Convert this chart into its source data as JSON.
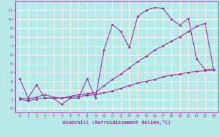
{
  "background_color": "#b8e8e8",
  "grid_color": "#ffffff",
  "line_color": "#993399",
  "xlabel": "Windchill (Refroidissement éolien,°C)",
  "xlim": [
    -0.5,
    23.5
  ],
  "ylim": [
    -0.5,
    12
  ],
  "xticks": [
    0,
    1,
    2,
    3,
    4,
    5,
    6,
    7,
    8,
    9,
    10,
    11,
    12,
    13,
    14,
    15,
    16,
    17,
    18,
    19,
    20,
    21,
    22,
    23
  ],
  "yticks": [
    0,
    1,
    2,
    3,
    4,
    5,
    6,
    7,
    8,
    9,
    10,
    11
  ],
  "curve1_x": [
    0,
    1,
    2,
    3,
    4,
    5,
    6,
    7,
    8,
    9,
    10,
    11,
    12,
    13,
    14,
    15,
    16,
    17,
    18,
    19,
    20,
    21,
    22,
    23
  ],
  "curve1_y": [
    3.3,
    1.1,
    2.6,
    1.1,
    1.1,
    0.4,
    1.1,
    1.1,
    3.3,
    1.1,
    6.5,
    9.4,
    8.6,
    6.8,
    10.3,
    11.0,
    11.3,
    11.2,
    10.0,
    9.3,
    10.1,
    5.5,
    4.3,
    4.3
  ],
  "curve2_x": [
    0,
    1,
    2,
    3,
    4,
    5,
    6,
    7,
    8,
    9,
    10,
    11,
    12,
    13,
    14,
    15,
    16,
    17,
    18,
    19,
    20,
    21,
    22,
    23
  ],
  "curve2_y": [
    1.1,
    1.0,
    1.2,
    1.5,
    1.2,
    1.1,
    1.3,
    1.5,
    1.6,
    1.7,
    2.5,
    3.2,
    3.8,
    4.5,
    5.2,
    5.8,
    6.5,
    7.0,
    7.5,
    8.0,
    8.6,
    9.2,
    9.5,
    4.3
  ],
  "curve3_x": [
    0,
    1,
    2,
    3,
    4,
    5,
    6,
    7,
    8,
    9,
    10,
    11,
    12,
    13,
    14,
    15,
    16,
    17,
    18,
    19,
    20,
    21,
    22,
    23
  ],
  "curve3_y": [
    1.0,
    0.8,
    1.0,
    1.1,
    1.1,
    1.1,
    1.2,
    1.3,
    1.4,
    1.5,
    1.7,
    1.9,
    2.2,
    2.5,
    2.8,
    3.0,
    3.2,
    3.5,
    3.7,
    3.8,
    4.0,
    4.1,
    4.2,
    4.3
  ]
}
